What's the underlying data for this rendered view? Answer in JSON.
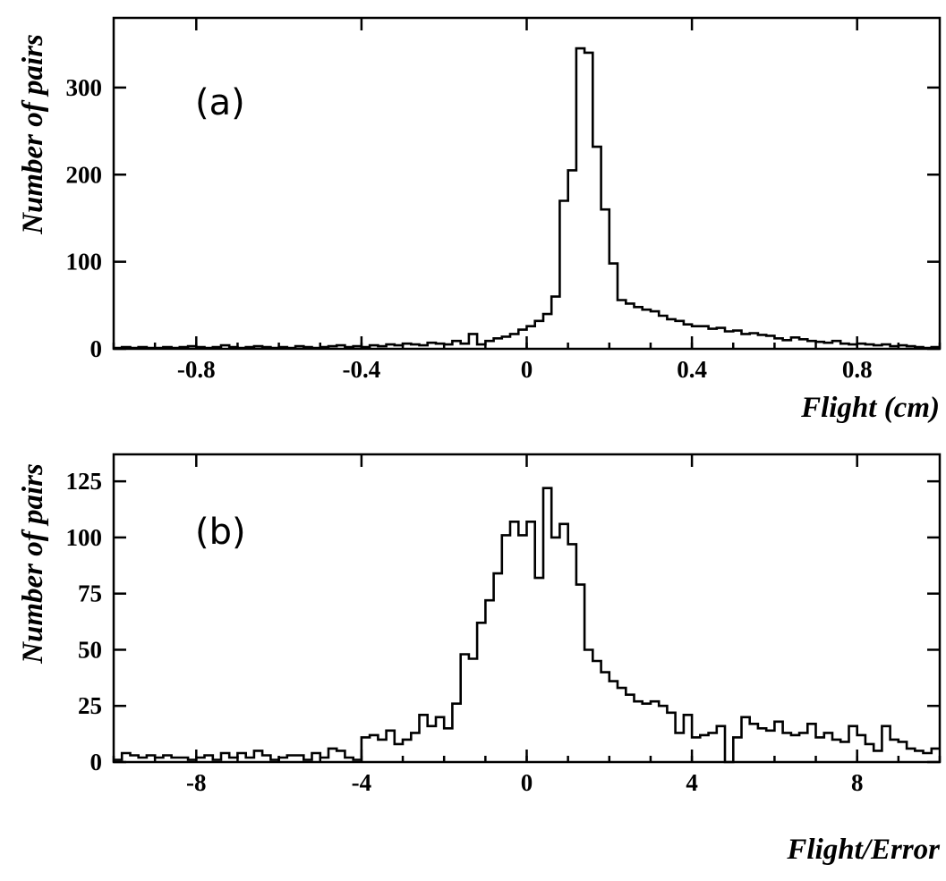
{
  "chart_data": [
    {
      "type": "bar",
      "subtype": "step-histogram",
      "panel_label": "(a)",
      "xlabel": "Flight (cm)",
      "ylabel": "Number of pairs",
      "xlim": [
        -1.0,
        1.0
      ],
      "ylim": [
        0,
        380
      ],
      "xticks": [
        -0.8,
        -0.4,
        0,
        0.4,
        0.8
      ],
      "xtick_labels": [
        "-0.8",
        "-0.4",
        "0",
        "0.4",
        "0.8"
      ],
      "yticks": [
        0,
        100,
        200,
        300
      ],
      "ytick_labels": [
        "0",
        "100",
        "200",
        "300"
      ],
      "bin_edges_range": [
        -1.0,
        1.0
      ],
      "values": [
        1,
        2,
        1,
        2,
        1,
        1,
        2,
        1,
        2,
        3,
        2,
        1,
        2,
        4,
        2,
        1,
        2,
        3,
        2,
        1,
        2,
        1,
        3,
        2,
        1,
        2,
        3,
        4,
        2,
        3,
        2,
        4,
        3,
        5,
        4,
        6,
        5,
        4,
        7,
        6,
        5,
        9,
        6,
        17,
        5,
        9,
        12,
        14,
        17,
        22,
        26,
        32,
        40,
        60,
        170,
        205,
        345,
        340,
        232,
        160,
        98,
        56,
        52,
        48,
        45,
        43,
        38,
        34,
        32,
        28,
        26,
        26,
        23,
        24,
        20,
        21,
        17,
        18,
        16,
        15,
        12,
        10,
        13,
        11,
        9,
        8,
        7,
        9,
        6,
        5,
        6,
        5,
        4,
        5,
        3,
        4,
        3,
        2,
        1,
        2
      ]
    },
    {
      "type": "bar",
      "subtype": "step-histogram",
      "panel_label": "(b)",
      "xlabel": "Flight/Error",
      "ylabel": "Number of pairs",
      "xlim": [
        -10,
        10
      ],
      "ylim": [
        0,
        137
      ],
      "xticks": [
        -8,
        -4,
        0,
        4,
        8
      ],
      "xtick_labels": [
        "-8",
        "-4",
        "0",
        "4",
        "8"
      ],
      "yticks": [
        0,
        25,
        50,
        75,
        100,
        125
      ],
      "ytick_labels": [
        "0",
        "25",
        "50",
        "75",
        "100",
        "125"
      ],
      "bin_edges_range": [
        -10,
        10
      ],
      "values": [
        1,
        4,
        3,
        2,
        3,
        2,
        3,
        2,
        2,
        1,
        2,
        3,
        1,
        4,
        2,
        4,
        2,
        5,
        3,
        1,
        2,
        3,
        3,
        1,
        4,
        2,
        6,
        5,
        2,
        1,
        11,
        12,
        10,
        14,
        8,
        10,
        13,
        21,
        16,
        20,
        15,
        26,
        48,
        46,
        62,
        72,
        84,
        101,
        107,
        101,
        107,
        82,
        122,
        100,
        106,
        97,
        79,
        50,
        45,
        40,
        36,
        33,
        30,
        27,
        26,
        27,
        25,
        22,
        13,
        21,
        11,
        12,
        13,
        16,
        0,
        11,
        20,
        17,
        15,
        14,
        18,
        13,
        12,
        13,
        17,
        11,
        13,
        10,
        9,
        16,
        12,
        8,
        5,
        16,
        10,
        9,
        6,
        5,
        4,
        6
      ]
    }
  ]
}
